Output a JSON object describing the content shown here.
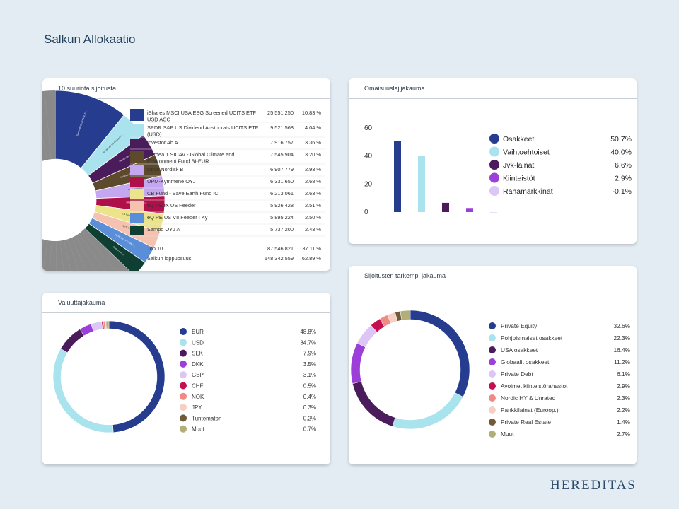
{
  "page": {
    "title": "Salkun Allokaatio",
    "brand": "HEREDITAS"
  },
  "top10": {
    "title": "10 suurinta sijoitusta",
    "rows": [
      {
        "name": "iShares MSCI USA ESG Screened UCITS ETF USD ACC",
        "value": "25 551 250",
        "pct": "10.83 %",
        "color": "#253c8f"
      },
      {
        "name": "SPDR S&P US Dividend Aristocrats UCITS ETF (USD)",
        "value": "9 521 568",
        "pct": "4.04 %",
        "color": "#a9e3ee"
      },
      {
        "name": "Investor Ab A",
        "value": "7 916 757",
        "pct": "3.36 %",
        "color": "#4a1c5c"
      },
      {
        "name": "Nordea 1 SICAV - Global Climate and Environment Fund BI-EUR",
        "value": "7 545 904",
        "pct": "3.20 %",
        "color": "#5d4a2c"
      },
      {
        "name": "Novo Nordisk B",
        "value": "6 907 779",
        "pct": "2.93 %",
        "color": "#c5a6f0"
      },
      {
        "name": "UPM-Kymmene OYJ",
        "value": "6 331 650",
        "pct": "2.68 %",
        "color": "#b0104a"
      },
      {
        "name": "CB Fund - Save Earth Fund IC",
        "value": "6 213 061",
        "pct": "2.63 %",
        "color": "#ece48a"
      },
      {
        "name": "eQ PE IX US Feeder",
        "value": "5 926 428",
        "pct": "2.51 %",
        "color": "#f6c2b0"
      },
      {
        "name": "eQ PE US VII Feeder I Ky",
        "value": "5 895 224",
        "pct": "2.50 %",
        "color": "#5a8ed8"
      },
      {
        "name": "Sampo OYJ A",
        "value": "5 737 200",
        "pct": "2.43 %",
        "color": "#0f3e32"
      }
    ],
    "summary": [
      {
        "label": "Top 10",
        "value": "87 546 821",
        "pct": "37.11 %"
      },
      {
        "label": "Salkun loppuosuus",
        "value": "148 342 559",
        "pct": "62.89 %"
      }
    ],
    "rest_color": "#8a8a8a",
    "segment_labels": [
      "iShares MSCI USA ESG Screened UCITS ETF USD ACC",
      "SPDR S&P US Dividend Aristocrats UCITS ETF (USD)",
      "Investor Ab A",
      "Nordea 1 SICAV - Global Climate and Environment Fund BI-EUR",
      "Novo Nordisk B",
      "UPM-Kymmene OYJ",
      "CB Fund - Save Earth Fund IC",
      "eQ PE IX US Feeder",
      "eQ PE US VII Feeder I Ky",
      "Sampo OYJ A"
    ]
  },
  "chart_data": [
    {
      "type": "bar",
      "title": "Omaisuuslajijakauma",
      "categories": [
        "Osakkeet",
        "Vaihtoehtoiset",
        "Jvk-lainat",
        "Kiinteistöt",
        "Rahamarkkinat"
      ],
      "values": [
        50.7,
        40.0,
        6.6,
        2.9,
        -0.1
      ],
      "labels": [
        "50.7%",
        "40.0%",
        "6.6%",
        "2.9%",
        "-0.1%"
      ],
      "colors": [
        "#253c8f",
        "#a9e3ee",
        "#4a1c5c",
        "#9b3fd8",
        "#dcc6f5"
      ],
      "ylim": [
        0,
        60
      ],
      "yticks": [
        0,
        20,
        40,
        60
      ],
      "legend": "right"
    },
    {
      "type": "pie",
      "title": "Valuuttajakauma",
      "categories": [
        "EUR",
        "USD",
        "SEK",
        "DKK",
        "GBP",
        "CHF",
        "NOK",
        "JPY",
        "Tuntematon",
        "Muut"
      ],
      "values": [
        48.8,
        34.7,
        7.9,
        3.5,
        3.1,
        0.5,
        0.4,
        0.3,
        0.2,
        0.7
      ],
      "labels": [
        "48.8%",
        "34.7%",
        "7.9%",
        "3.5%",
        "3.1%",
        "0.5%",
        "0.4%",
        "0.3%",
        "0.2%",
        "0.7%"
      ],
      "colors": [
        "#253c8f",
        "#a9e3ee",
        "#4a1c5c",
        "#9b3fd8",
        "#dcc6f5",
        "#c4104f",
        "#f08a84",
        "#f7cfc2",
        "#6f5a3a",
        "#b3ae78"
      ],
      "legend": "right"
    },
    {
      "type": "pie",
      "title": "Sijoitusten tarkempi jakauma",
      "categories": [
        "Private Equity",
        "Pohjoismaiset osakkeet",
        "USA osakkeet",
        "Globaalit osakkeet",
        "Private Debt",
        "Avoimet kiinteistörahastot",
        "Nordic HY & Unrated",
        "Pankkilainat (Euroop.)",
        "Private Real Estate",
        "Muut"
      ],
      "values": [
        32.6,
        22.3,
        16.4,
        11.2,
        6.1,
        2.9,
        2.3,
        2.2,
        1.4,
        2.7
      ],
      "labels": [
        "32.6%",
        "22.3%",
        "16.4%",
        "11.2%",
        "6.1%",
        "2.9%",
        "2.3%",
        "2.2%",
        "1.4%",
        "2.7%"
      ],
      "colors": [
        "#253c8f",
        "#a9e3ee",
        "#4a1c5c",
        "#9b3fd8",
        "#dcc6f5",
        "#c4104f",
        "#f08a84",
        "#f7cfc2",
        "#6f5a3a",
        "#b3ae78"
      ],
      "legend": "right"
    }
  ]
}
